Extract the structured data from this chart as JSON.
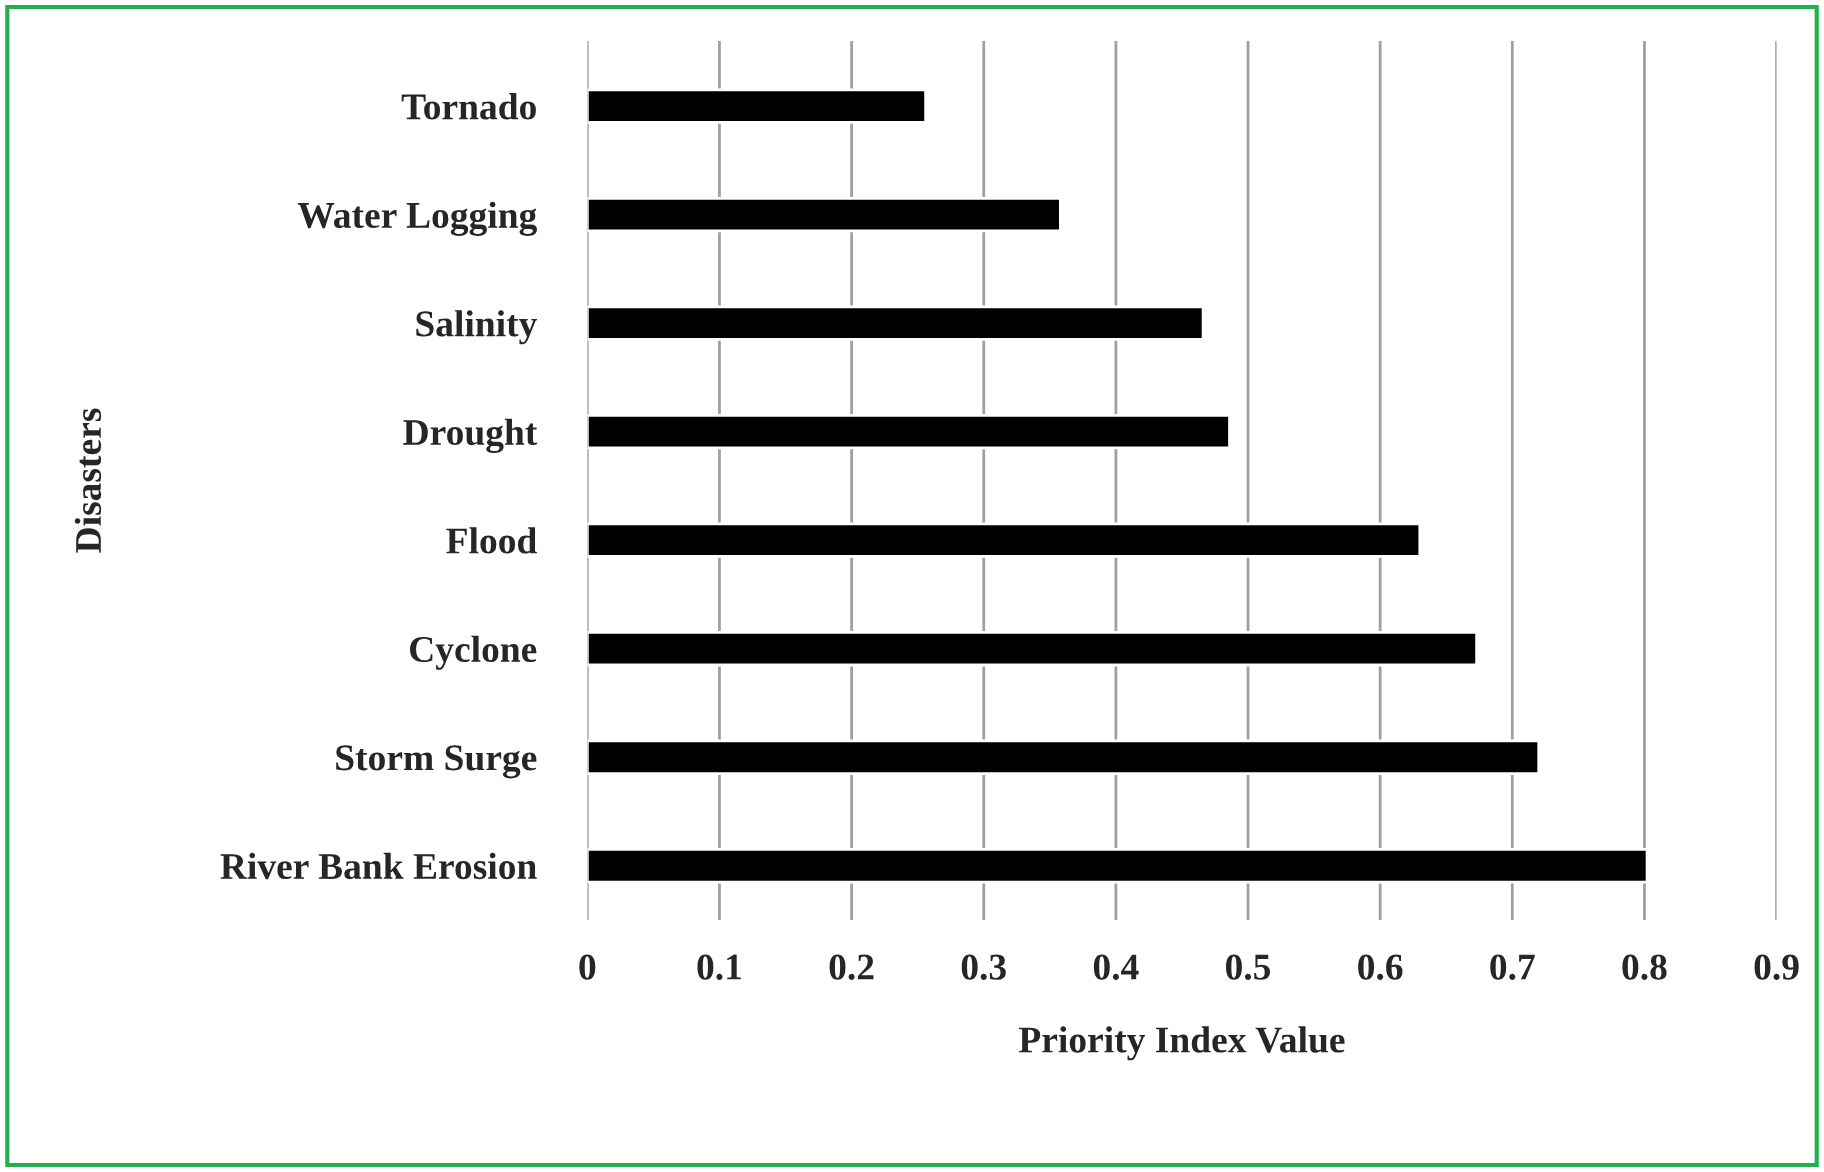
{
  "chart_data": {
    "type": "bar",
    "orientation": "horizontal",
    "categories": [
      "Tornado",
      "Water Logging",
      "Salinity",
      "Drought",
      "Flood",
      "Cyclone",
      "Storm Surge",
      "River Bank Erosion"
    ],
    "values": [
      0.256,
      0.358,
      0.466,
      0.486,
      0.63,
      0.673,
      0.72,
      0.802
    ],
    "color": "#000000",
    "xlabel": "Priority Index Value",
    "ylabel": "Disasters",
    "xlim": [
      0,
      0.9
    ],
    "xticks": [
      0,
      0.1,
      0.2,
      0.3,
      0.4,
      0.5,
      0.6,
      0.7,
      0.8,
      0.9
    ],
    "grid": "x",
    "legend": false
  }
}
